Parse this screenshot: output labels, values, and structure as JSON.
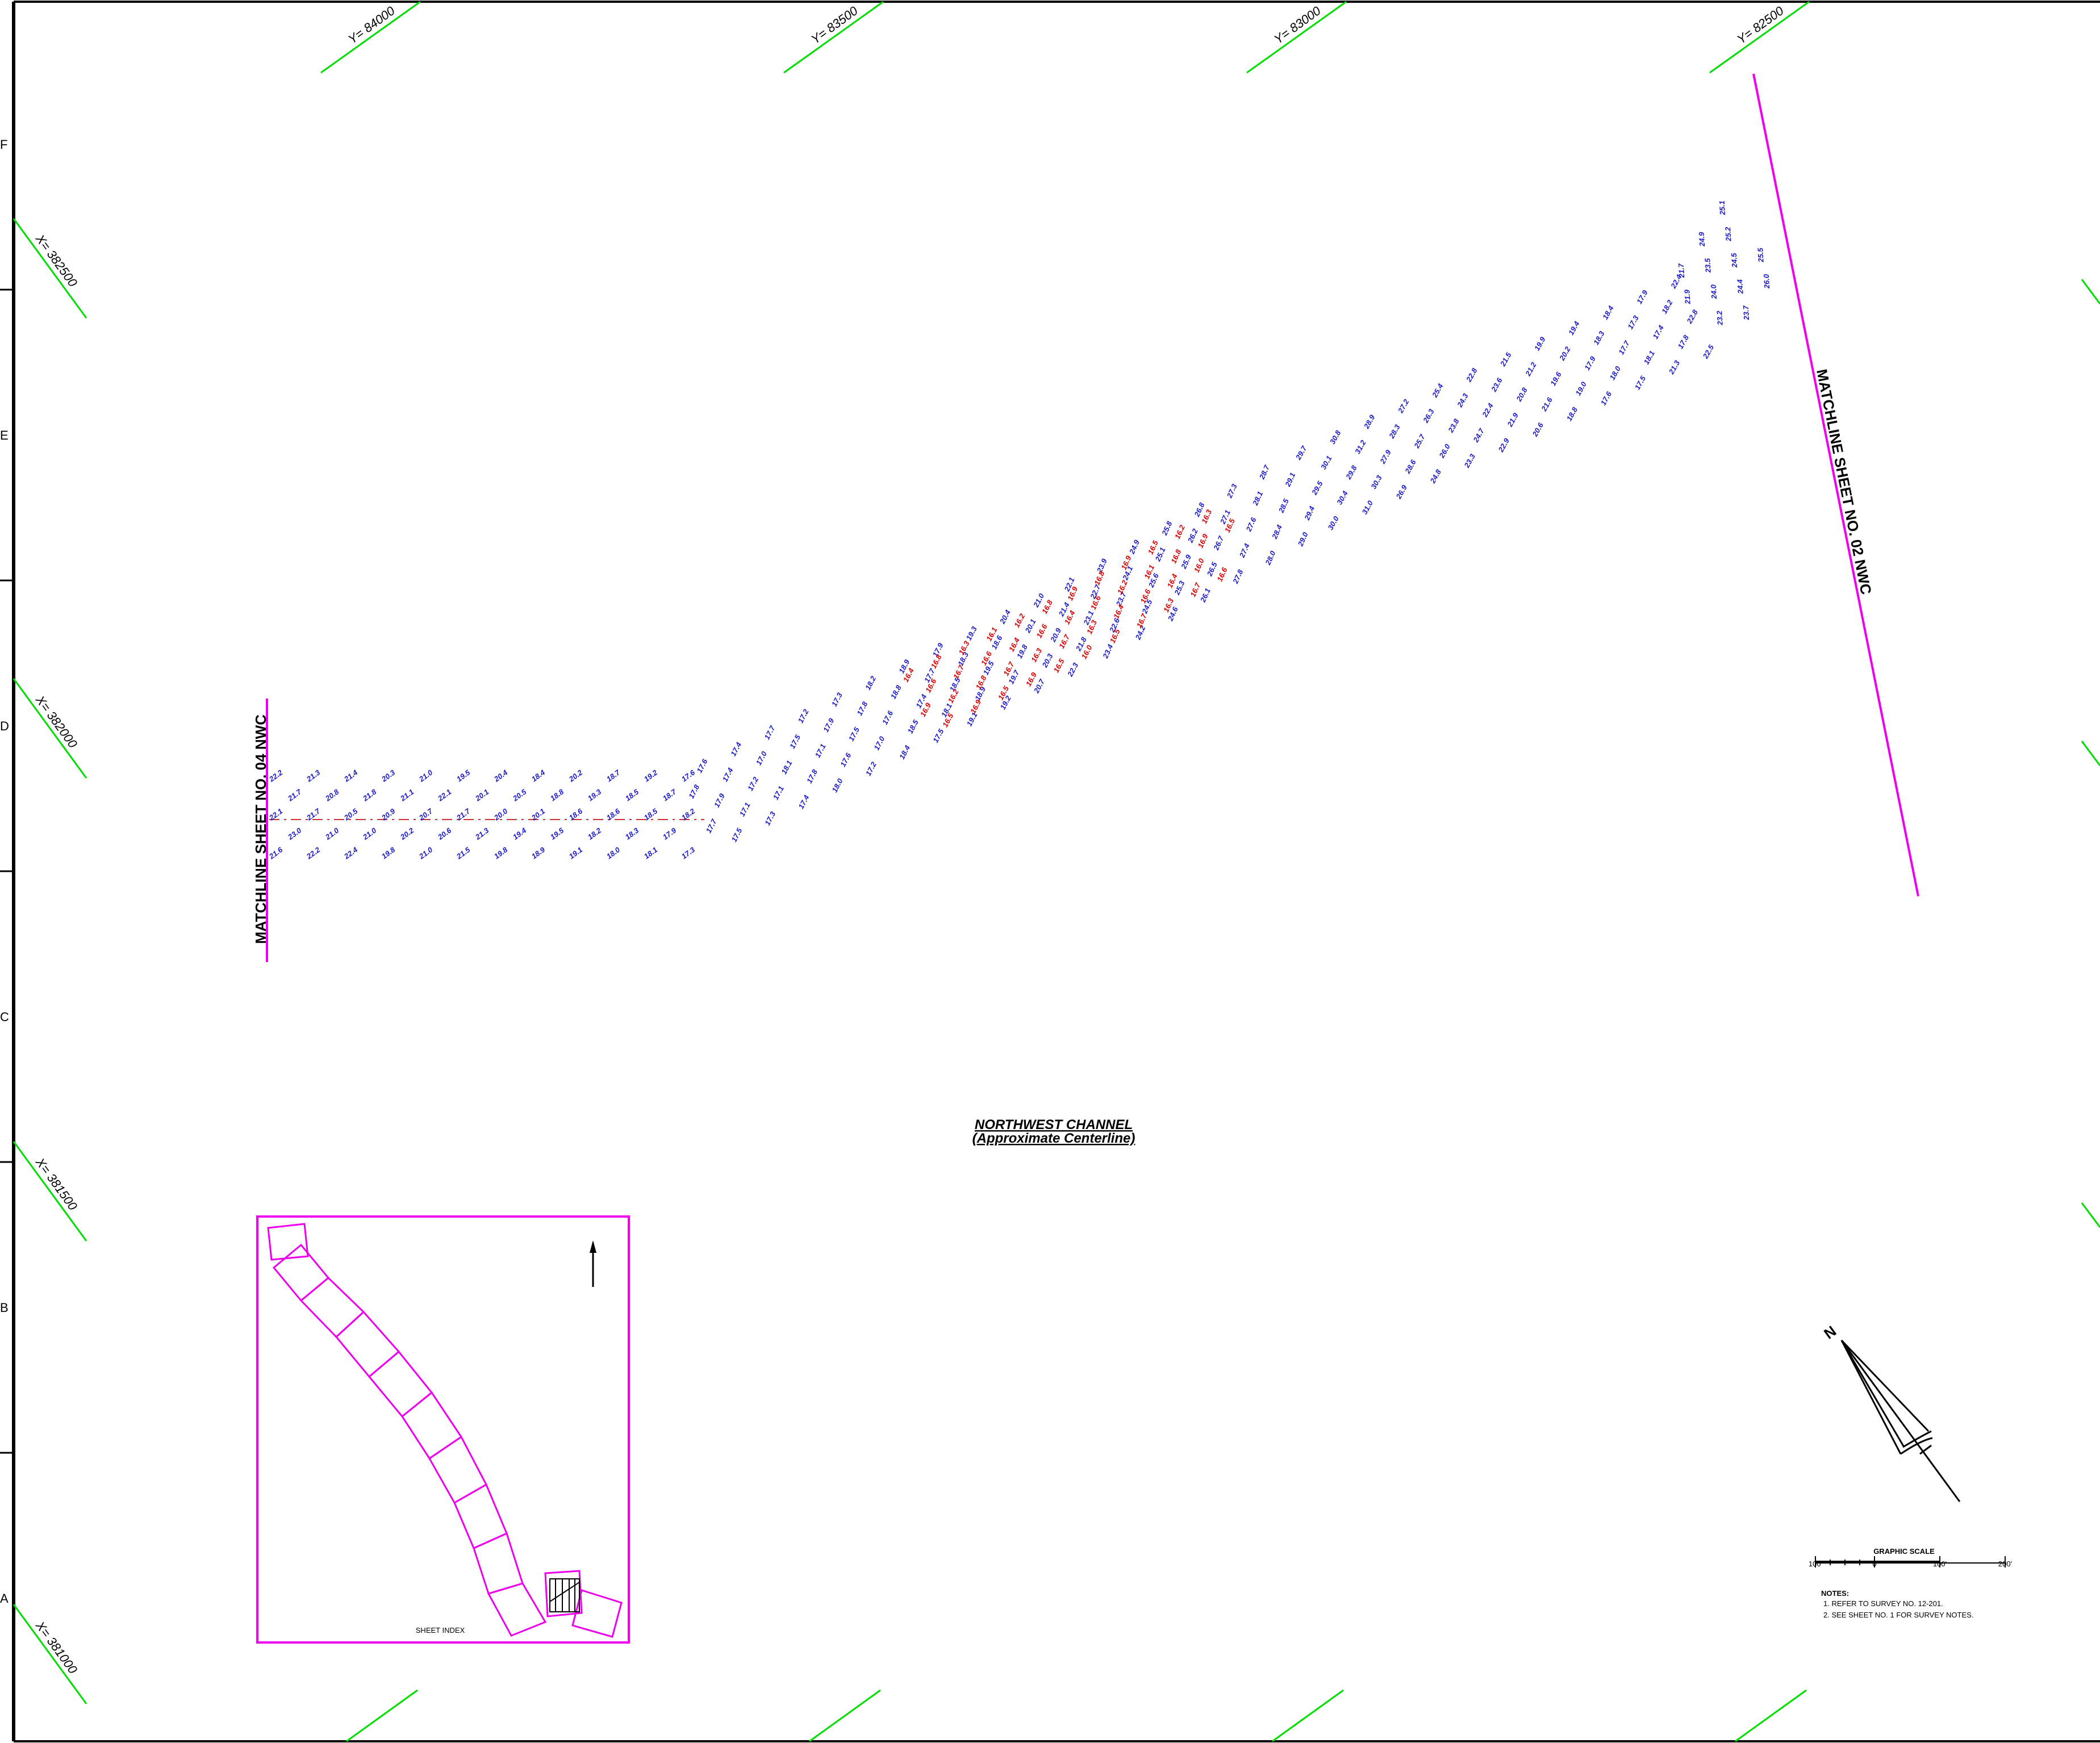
{
  "colors": {
    "grid_tick": "#00dd00",
    "matchline": "#ee00ee",
    "normal_sounding": "#1a1acc",
    "shoal_sounding": "#dd0000",
    "border": "#000000",
    "centerline": "#cc3333"
  },
  "grid": {
    "y_labels": [
      "Y= 84000",
      "Y= 83500",
      "Y= 83000",
      "Y= 82500"
    ],
    "x_labels": [
      "X= 382500",
      "X= 382000",
      "X= 381500",
      "X= 381000"
    ],
    "row_letters": [
      "F",
      "E",
      "D",
      "C",
      "B",
      "A"
    ]
  },
  "matchlines": {
    "left": "MATCHLINE SHEET NO. 04 NWC",
    "right": "MATCHLINE SHEET NO. 02 NWC"
  },
  "channel": {
    "title": "NORTHWEST CHANNEL",
    "subtitle": "(Approximate Centerline)"
  },
  "sheet_index": {
    "label": "SHEET INDEX",
    "north_arrow_icon": "north-arrow-icon"
  },
  "scale": {
    "title": "GRAPHIC SCALE",
    "ticks": [
      "100'",
      "0",
      "100'",
      "200'"
    ]
  },
  "notes": {
    "heading": "NOTES:",
    "items": [
      "1. REFER TO SURVEY NO. 12-201.",
      "2. SEE SHEET NO. 1 FOR SURVEY NOTES."
    ]
  },
  "north_arrow": {
    "label": "N",
    "icon": "north-arrow-icon"
  },
  "soundings": {
    "blue": [
      "22.2",
      "21.7",
      "22.1",
      "23.0",
      "21.6",
      "21.3",
      "20.8",
      "21.7",
      "21.0",
      "22.2",
      "21.4",
      "21.8",
      "20.5",
      "21.0",
      "22.4",
      "20.3",
      "21.1",
      "20.9",
      "20.2",
      "19.8",
      "21.0",
      "22.1",
      "20.7",
      "20.6",
      "21.0",
      "19.5",
      "20.1",
      "21.7",
      "21.3",
      "21.5",
      "20.4",
      "20.5",
      "20.0",
      "19.4",
      "19.8",
      "18.4",
      "18.8",
      "20.1",
      "19.5",
      "18.9",
      "20.2",
      "19.3",
      "18.6",
      "18.2",
      "19.1",
      "18.7",
      "18.5",
      "18.6",
      "18.3",
      "18.0",
      "19.2",
      "18.7",
      "18.5",
      "17.9",
      "18.1",
      "17.6",
      "17.8",
      "18.2",
      "17.7",
      "17.3",
      "17.6",
      "17.4",
      "17.9",
      "17.1",
      "17.5",
      "17.4",
      "17.0",
      "17.2",
      "17.1",
      "17.3",
      "17.7",
      "17.5",
      "18.1",
      "17.8",
      "17.4",
      "17.2",
      "17.9",
      "17.1",
      "17.6",
      "18.0",
      "17.3",
      "17.8",
      "17.5",
      "17.0",
      "17.2",
      "18.2",
      "18.8",
      "17.6",
      "18.5",
      "18.4",
      "18.9",
      "17.7",
      "17.4",
      "18.1",
      "17.5",
      "17.9",
      "18.3",
      "18.5",
      "18.9",
      "19.1",
      "19.3",
      "18.6",
      "19.5",
      "19.7",
      "19.2",
      "20.4",
      "20.1",
      "19.8",
      "20.3",
      "20.7",
      "21.0",
      "21.4",
      "20.9",
      "21.8",
      "22.3",
      "22.1",
      "22.7",
      "23.1",
      "22.6",
      "23.4",
      "23.9",
      "24.1",
      "23.7",
      "24.5",
      "24.2",
      "24.9",
      "25.1",
      "25.6",
      "25.3",
      "24.6",
      "25.8",
      "26.2",
      "25.9",
      "26.5",
      "26.1",
      "26.8",
      "27.1",
      "26.7",
      "27.4",
      "27.8",
      "27.3",
      "28.1",
      "27.6",
      "28.4",
      "28.0",
      "28.7",
      "29.1",
      "28.5",
      "29.4",
      "29.0",
      "29.7",
      "30.1",
      "29.5",
      "30.4",
      "30.0",
      "30.8",
      "31.2",
      "29.8",
      "30.3",
      "31.0",
      "28.9",
      "28.3",
      "27.9",
      "28.6",
      "26.9",
      "27.2",
      "26.3",
      "25.7",
      "26.0",
      "24.8",
      "25.4",
      "24.3",
      "23.8",
      "24.7",
      "23.3",
      "22.8",
      "23.6",
      "22.4",
      "21.9",
      "22.9",
      "21.5",
      "21.2",
      "20.8",
      "21.6",
      "20.6",
      "19.9",
      "20.2",
      "19.6",
      "19.0",
      "18.8",
      "19.4",
      "18.3",
      "17.9",
      "18.0",
      "17.6",
      "18.4",
      "17.3",
      "17.7",
      "18.1",
      "17.5",
      "17.9",
      "18.2",
      "17.4",
      "17.8",
      "21.3",
      "22.4",
      "21.9",
      "22.8",
      "23.2",
      "22.5",
      "21.7",
      "23.5",
      "24.0",
      "24.4",
      "23.7",
      "24.9",
      "25.2",
      "24.5",
      "25.5",
      "26.0",
      "25.1"
    ],
    "red": [
      "16.4",
      "16.6",
      "16.9",
      "16.5",
      "16.8",
      "16.7",
      "16.2",
      "16.9",
      "16.3",
      "16.6",
      "16.8",
      "16.5",
      "16.1",
      "16.4",
      "16.7",
      "16.9",
      "16.2",
      "16.6",
      "16.3",
      "16.5",
      "16.8",
      "16.4",
      "16.7",
      "16.0",
      "16.9",
      "16.6",
      "16.3",
      "16.5",
      "16.8",
      "16.2",
      "16.4",
      "16.7",
      "16.9",
      "16.1",
      "16.6",
      "16.3",
      "16.5",
      "16.8",
      "16.4",
      "16.7",
      "16.2",
      "16.9",
      "16.0",
      "16.6",
      "16.3",
      "16.5"
    ]
  }
}
